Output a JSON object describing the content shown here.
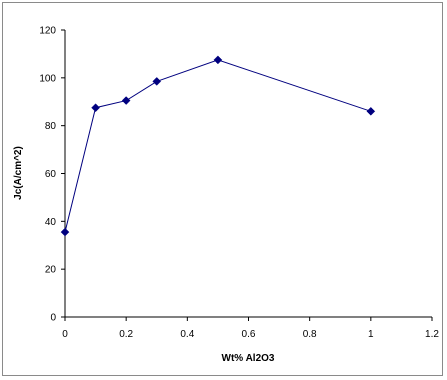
{
  "chart_data": {
    "type": "line",
    "title": "",
    "xlabel": "Wt% Al2O3",
    "ylabel": "Jc(A/cm^2)",
    "xlim": [
      0,
      1.2
    ],
    "ylim": [
      0,
      120
    ],
    "x_ticks": [
      "0",
      "0.2",
      "0.4",
      "0.6",
      "0.8",
      "1",
      "1.2"
    ],
    "y_ticks": [
      "0",
      "20",
      "40",
      "60",
      "80",
      "100",
      "120"
    ],
    "grid": false,
    "legend": "none",
    "marker": "diamond",
    "line_color": "#00007f",
    "marker_color": "#00007f",
    "series": [
      {
        "x": [
          0,
          0.1,
          0.2,
          0.3,
          0.5,
          1.0
        ],
        "y": [
          35.5,
          87.5,
          90.5,
          98.5,
          107.5,
          86.0
        ]
      }
    ]
  }
}
